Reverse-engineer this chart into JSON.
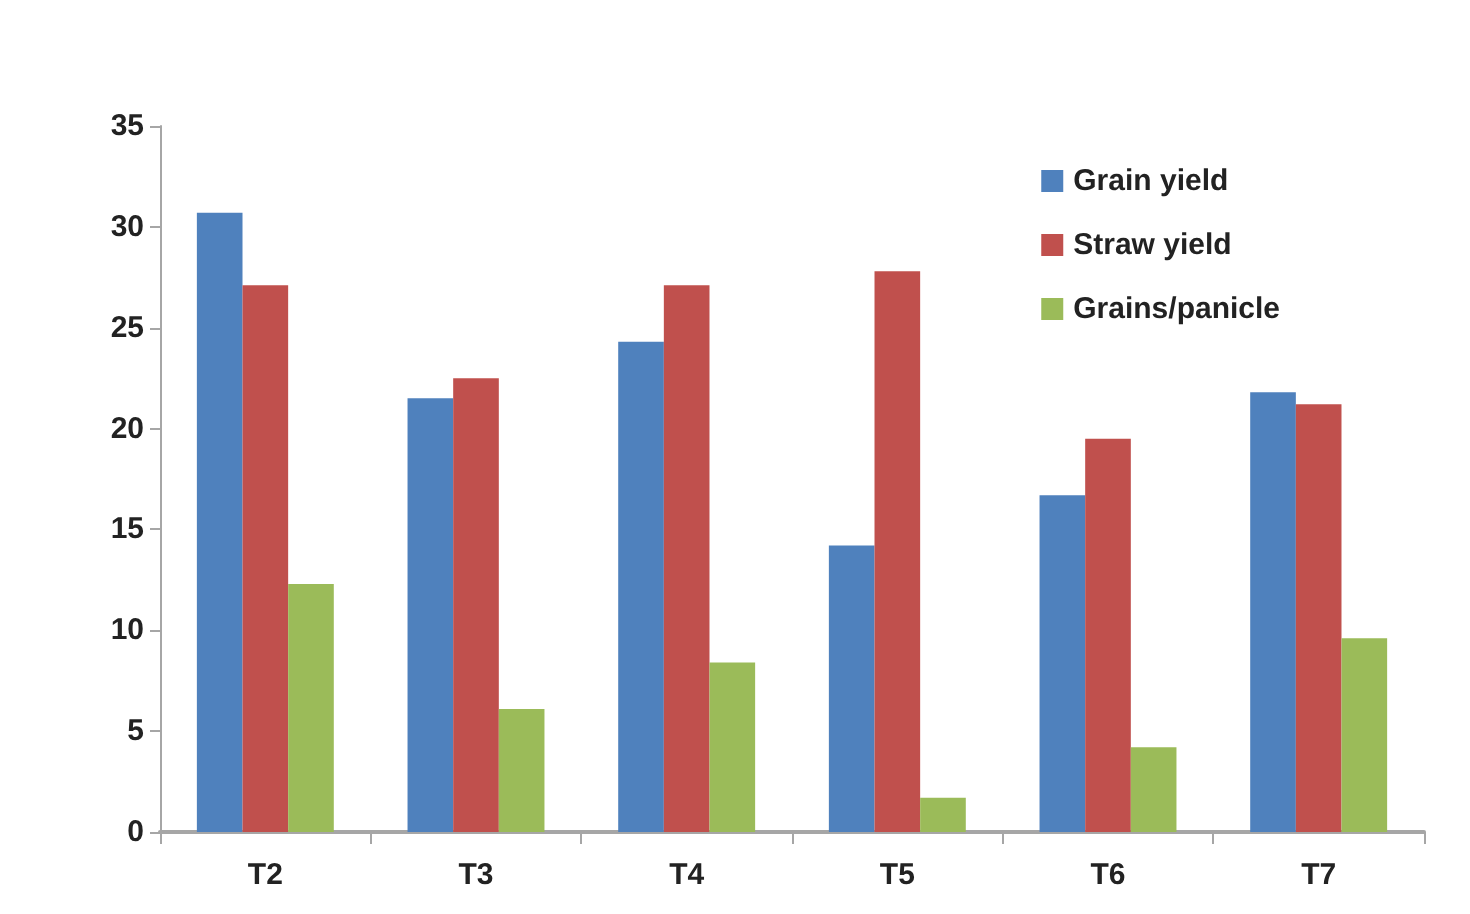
{
  "chart_data": {
    "type": "bar",
    "categories": [
      "T2",
      "T3",
      "T4",
      "T5",
      "T6",
      "T7"
    ],
    "series": [
      {
        "name": "Grain yield",
        "color": "#4f81bd",
        "values": [
          30.7,
          21.5,
          24.3,
          14.2,
          16.7,
          21.8
        ]
      },
      {
        "name": "Straw yield",
        "color": "#c0504d",
        "values": [
          27.1,
          22.5,
          27.1,
          27.8,
          19.5,
          21.2
        ]
      },
      {
        "name": "Grains/panicle",
        "color": "#9bbb59",
        "values": [
          12.3,
          6.1,
          8.4,
          1.7,
          4.2,
          9.6
        ]
      }
    ],
    "ylim": [
      0,
      35
    ],
    "yticks": [
      0,
      5,
      10,
      15,
      20,
      25,
      30,
      35
    ],
    "grid": false,
    "legend": "top right"
  }
}
